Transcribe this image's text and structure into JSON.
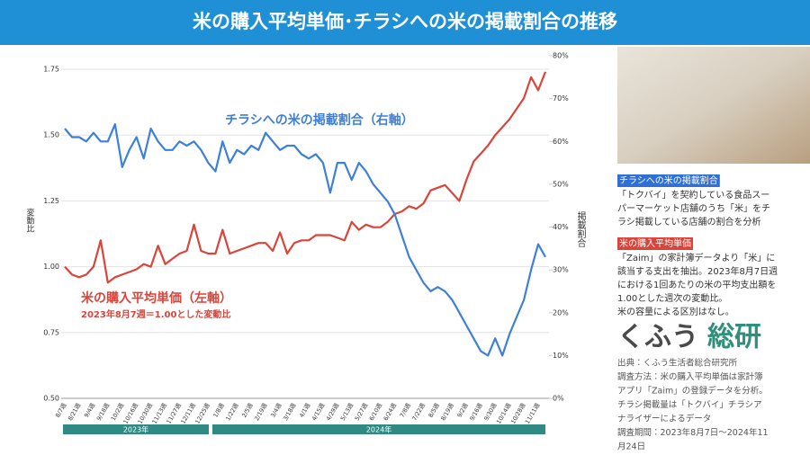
{
  "header": {
    "title": "米の購入平均単価･チラシへの米の掲載割合の推移"
  },
  "chart_data": {
    "type": "line",
    "y_axis_label": "変動比",
    "y2_axis_label": "掲載割合",
    "categories": [
      "8/7週",
      null,
      "8/21週",
      null,
      "9/4週",
      null,
      "9/18週",
      null,
      "10/2週",
      null,
      "10/16週",
      null,
      "10/30週",
      null,
      "11/13週",
      null,
      "11/27週",
      null,
      "12/11週",
      null,
      "12/25週",
      null,
      "1/8週",
      null,
      "1/22週",
      null,
      "2/5週",
      null,
      "2/19週",
      null,
      "3/4週",
      null,
      "3/18週",
      null,
      "4/1週",
      null,
      "4/15週",
      null,
      "4/29週",
      null,
      "5/13週",
      null,
      "5/27週",
      null,
      "6/10週",
      null,
      "6/24週",
      null,
      "7/8週",
      null,
      "7/22週",
      null,
      "8/5週",
      null,
      "8/19週",
      null,
      "9/2週",
      null,
      "9/16週",
      null,
      "9/30週",
      null,
      "10/14週",
      null,
      "10/28週",
      null,
      "11/11週",
      null
    ],
    "period_labels": [
      "2023年",
      "2024年"
    ],
    "series": [
      {
        "name": "米の購入平均単価（左軸）",
        "note": "2023年8月7週＝1.00とした変動比",
        "color": "#d9453a",
        "values": [
          1.0,
          0.97,
          0.96,
          0.97,
          1.0,
          1.1,
          0.94,
          0.96,
          0.97,
          0.98,
          0.99,
          1.01,
          1.0,
          1.08,
          1.01,
          1.03,
          1.05,
          1.06,
          1.16,
          1.06,
          1.05,
          1.05,
          1.14,
          1.05,
          1.06,
          1.07,
          1.08,
          1.09,
          1.09,
          1.06,
          1.13,
          1.05,
          1.09,
          1.1,
          1.1,
          1.12,
          1.12,
          1.12,
          1.11,
          1.1,
          1.17,
          1.14,
          1.16,
          1.15,
          1.15,
          1.17,
          1.2,
          1.21,
          1.23,
          1.22,
          1.24,
          1.29,
          1.3,
          1.31,
          1.28,
          1.25,
          1.33,
          1.4,
          1.43,
          1.46,
          1.5,
          1.53,
          1.56,
          1.6,
          1.64,
          1.72,
          1.67,
          1.74
        ]
      },
      {
        "name": "チラシへの米の掲載割合（右軸）",
        "color": "#3d7fd9",
        "axis": "y2",
        "values": [
          63,
          61,
          61,
          60,
          62,
          60,
          60,
          64,
          54,
          58,
          61,
          56,
          63,
          60,
          58,
          58,
          60,
          59,
          60,
          58,
          55,
          53,
          60,
          55,
          58,
          57,
          59,
          58,
          62,
          60,
          58,
          59,
          59,
          57,
          56,
          57,
          55,
          48,
          55,
          55,
          51,
          55,
          53,
          50,
          48,
          46,
          43,
          38,
          33,
          30,
          27,
          25,
          26,
          25,
          23,
          20,
          17,
          14,
          11,
          10,
          14,
          10,
          15,
          19,
          23,
          30,
          36,
          33
        ]
      }
    ],
    "ylim": [
      0.5,
      1.75
    ],
    "yticks": [
      {
        "value": 0.5,
        "label": "0.50"
      },
      0.75,
      {
        "value": 1,
        "label": "1.00"
      },
      1.25,
      {
        "value": 1.5,
        "label": "1.50"
      },
      1.75
    ],
    "y2lim": [
      0,
      80
    ],
    "y2ticks": [
      {
        "value": 0,
        "label": "0%"
      },
      {
        "value": 10,
        "label": "10%"
      },
      {
        "value": 20,
        "label": "20%"
      },
      {
        "value": 30,
        "label": "30%"
      },
      {
        "value": 40,
        "label": "40%"
      },
      {
        "value": 50,
        "label": "50%"
      },
      {
        "value": 60,
        "label": "60%"
      },
      {
        "value": 70,
        "label": "70%"
      },
      {
        "value": 80,
        "label": "80%"
      }
    ],
    "grid": true
  },
  "side": {
    "flyer": {
      "label": "チラシへの米の掲載割合",
      "lines": [
        "「トクバイ」を契約している食品スー",
        "パーマーケット店舗のうち「米」をチ",
        "ラシ掲載している店舗の割合を分析"
      ]
    },
    "price": {
      "label": "米の購入平均単価",
      "lines": [
        "「Zaim」の家計簿データより「米」に",
        "該当する支出を抽出。2023年8月7日週",
        "における1回あたりの米の平均支出額を",
        "1.00とした週次の変動比。",
        "米の容量による区別はなし。"
      ]
    },
    "logo": {
      "main": "くふう",
      "accent": "総研"
    },
    "source": [
      "出典：くふう生活者総合研究所",
      "調査方法：米の購入平均単価は家計簿",
      "アプリ「Zaim」の登録データを分析。",
      "チラシ掲載量は「トクバイ」チラシア",
      "ナライザーによるデータ",
      "調査期間：2023年8月7日〜2024年11",
      "月24日"
    ]
  }
}
